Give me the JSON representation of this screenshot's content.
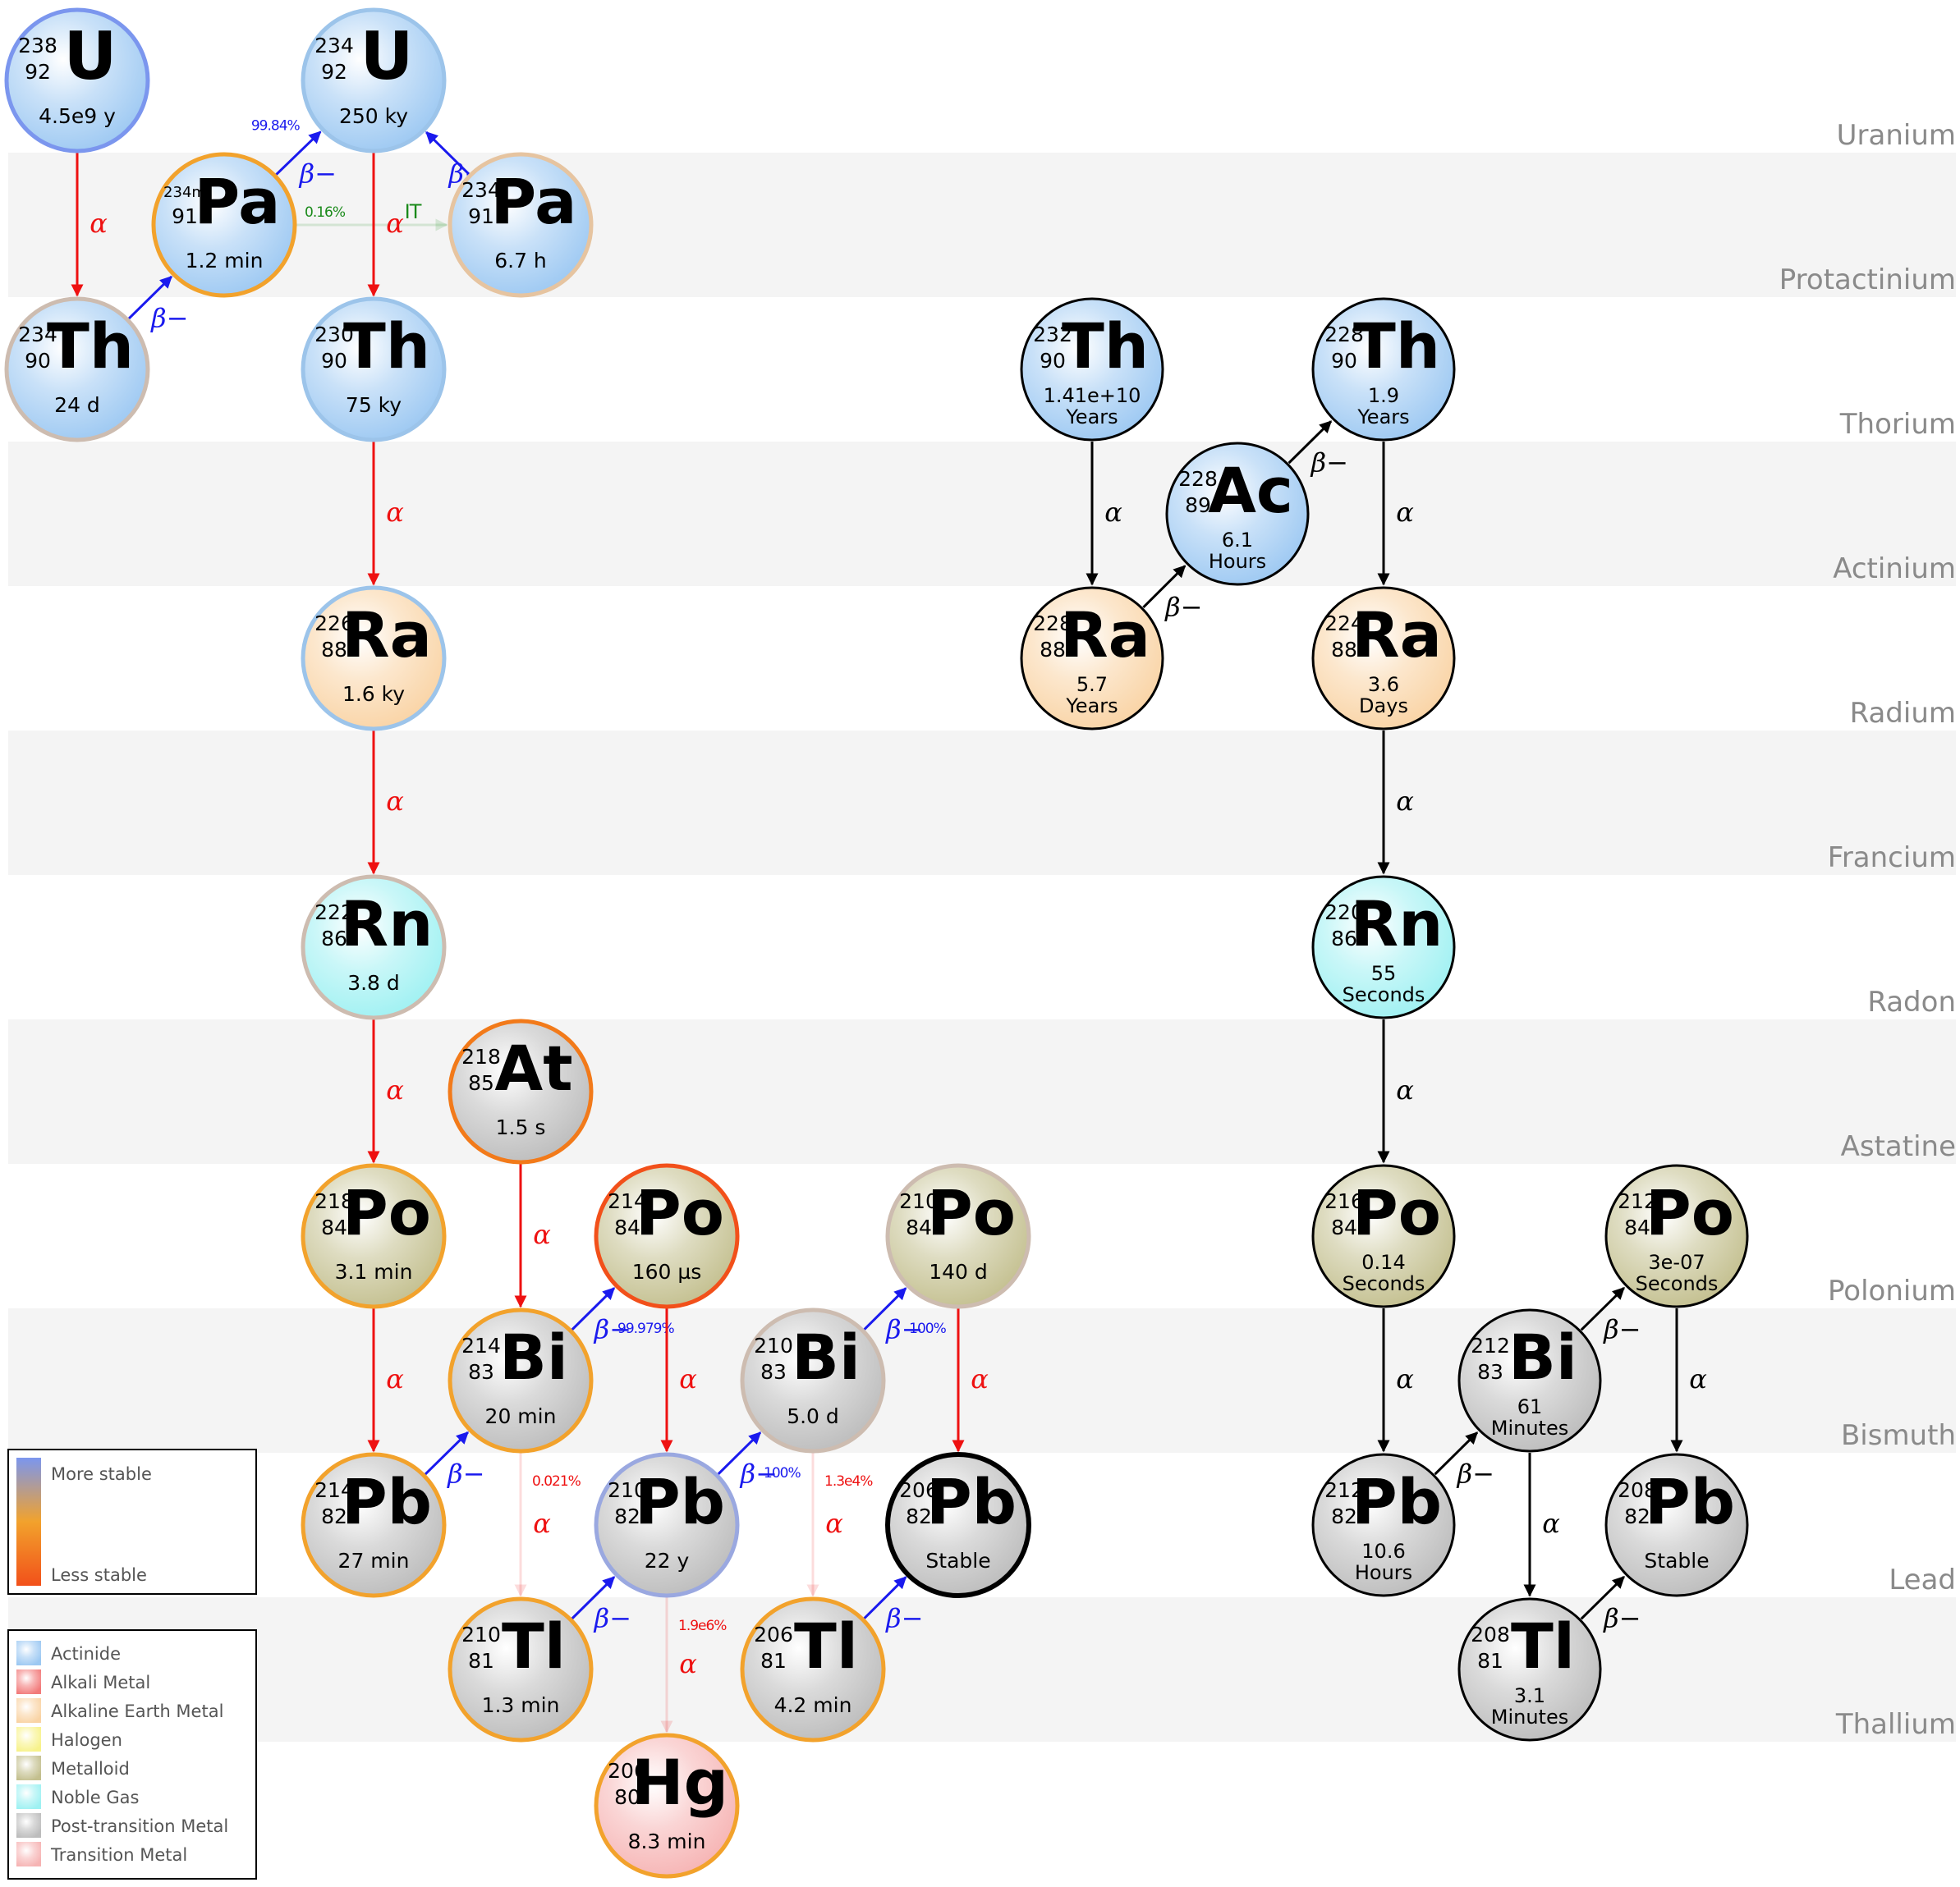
{
  "rows": [
    "Uranium",
    "Protactinium",
    "Thorium",
    "Actinium",
    "Radium",
    "Francium",
    "Radon",
    "Astatine",
    "Polonium",
    "Bismuth",
    "Lead",
    "Thallium"
  ],
  "colors": {
    "Actinide": "#9cc8f2",
    "Alkali Metal": "#f27a7a",
    "Alkaline Earth Metal": "#f9d3a4",
    "Halogen": "#f7f28a",
    "Metalloid": "#c3bf8e",
    "Noble Gas": "#9ef1f2",
    "Post-transition Metal": "#bcbcbc",
    "Transition Metal": "#f6b3b3",
    "red_arrow": "#ee1111",
    "blue_arrow": "#1a1aee",
    "green_text": "#1a8a1a"
  },
  "nuclides": [
    {
      "id": "u238",
      "mass": "238",
      "z": "92",
      "sym": "U",
      "hl": [
        "4.5e9 y"
      ],
      "cat": "Actinide",
      "ring": "#7b96ee"
    },
    {
      "id": "u234",
      "mass": "234",
      "z": "92",
      "sym": "U",
      "hl": [
        "250 ky"
      ],
      "cat": "Actinide",
      "ring": "#9cc4ea"
    },
    {
      "id": "pa234m",
      "mass": "234m",
      "z": "91",
      "sym": "Pa",
      "hl": [
        "1.2 min"
      ],
      "cat": "Actinide",
      "ring": "#f2a22c"
    },
    {
      "id": "pa234",
      "mass": "234",
      "z": "91",
      "sym": "Pa",
      "hl": [
        "6.7 h"
      ],
      "cat": "Actinide",
      "ring": "#e6c4a0"
    },
    {
      "id": "th234",
      "mass": "234",
      "z": "90",
      "sym": "Th",
      "hl": [
        "24 d"
      ],
      "cat": "Actinide",
      "ring": "#cdbcb0"
    },
    {
      "id": "th230",
      "mass": "230",
      "z": "90",
      "sym": "Th",
      "hl": [
        "75 ky"
      ],
      "cat": "Actinide",
      "ring": "#9cc4ea"
    },
    {
      "id": "ra226",
      "mass": "226",
      "z": "88",
      "sym": "Ra",
      "hl": [
        "1.6 ky"
      ],
      "cat": "Alkaline Earth Metal",
      "ring": "#9cc4ea"
    },
    {
      "id": "rn222",
      "mass": "222",
      "z": "86",
      "sym": "Rn",
      "hl": [
        "3.8 d"
      ],
      "cat": "Noble Gas",
      "ring": "#cdbcb0"
    },
    {
      "id": "at218",
      "mass": "218",
      "z": "85",
      "sym": "At",
      "hl": [
        "1.5 s"
      ],
      "cat": "Post-transition Metal",
      "ring": "#f27a1a"
    },
    {
      "id": "po218",
      "mass": "218",
      "z": "84",
      "sym": "Po",
      "hl": [
        "3.1 min"
      ],
      "cat": "Metalloid",
      "ring": "#f2a22c"
    },
    {
      "id": "po214",
      "mass": "214",
      "z": "84",
      "sym": "Po",
      "hl": [
        "160 µs"
      ],
      "cat": "Metalloid",
      "ring": "#f2501a"
    },
    {
      "id": "po210",
      "mass": "210",
      "z": "84",
      "sym": "Po",
      "hl": [
        "140 d"
      ],
      "cat": "Metalloid",
      "ring": "#cdbcb0"
    },
    {
      "id": "bi214",
      "mass": "214",
      "z": "83",
      "sym": "Bi",
      "hl": [
        "20 min"
      ],
      "cat": "Post-transition Metal",
      "ring": "#f2a22c"
    },
    {
      "id": "bi210",
      "mass": "210",
      "z": "83",
      "sym": "Bi",
      "hl": [
        "5.0 d"
      ],
      "cat": "Post-transition Metal",
      "ring": "#cdbcb0"
    },
    {
      "id": "pb214",
      "mass": "214",
      "z": "82",
      "sym": "Pb",
      "hl": [
        "27 min"
      ],
      "cat": "Post-transition Metal",
      "ring": "#f2a22c"
    },
    {
      "id": "pb210",
      "mass": "210",
      "z": "82",
      "sym": "Pb",
      "hl": [
        "22 y"
      ],
      "cat": "Post-transition Metal",
      "ring": "#9aa8e0"
    },
    {
      "id": "pb206",
      "mass": "206",
      "z": "82",
      "sym": "Pb",
      "hl": [
        "Stable"
      ],
      "cat": "Post-transition Metal",
      "ring": "#000000"
    },
    {
      "id": "tl210",
      "mass": "210",
      "z": "81",
      "sym": "Tl",
      "hl": [
        "1.3 min"
      ],
      "cat": "Post-transition Metal",
      "ring": "#f2a22c"
    },
    {
      "id": "tl206",
      "mass": "206",
      "z": "81",
      "sym": "Tl",
      "hl": [
        "4.2 min"
      ],
      "cat": "Post-transition Metal",
      "ring": "#f2a22c"
    },
    {
      "id": "hg206",
      "mass": "206",
      "z": "80",
      "sym": "Hg",
      "hl": [
        "8.3 min"
      ],
      "cat": "Transition Metal",
      "ring": "#f2a22c"
    },
    {
      "id": "th232",
      "mass": "232",
      "z": "90",
      "sym": "Th",
      "hl": [
        "1.41e+10",
        "Years"
      ],
      "cat": "Actinide",
      "ring": "#000000"
    },
    {
      "id": "th228",
      "mass": "228",
      "z": "90",
      "sym": "Th",
      "hl": [
        "1.9",
        "Years"
      ],
      "cat": "Actinide",
      "ring": "#000000"
    },
    {
      "id": "ac228",
      "mass": "228",
      "z": "89",
      "sym": "Ac",
      "hl": [
        "6.1",
        "Hours"
      ],
      "cat": "Actinide",
      "ring": "#000000"
    },
    {
      "id": "ra228",
      "mass": "228",
      "z": "88",
      "sym": "Ra",
      "hl": [
        "5.7",
        "Years"
      ],
      "cat": "Alkaline Earth Metal",
      "ring": "#000000"
    },
    {
      "id": "ra224",
      "mass": "224",
      "z": "88",
      "sym": "Ra",
      "hl": [
        "3.6",
        "Days"
      ],
      "cat": "Alkaline Earth Metal",
      "ring": "#000000"
    },
    {
      "id": "rn220",
      "mass": "220",
      "z": "86",
      "sym": "Rn",
      "hl": [
        "55",
        "Seconds"
      ],
      "cat": "Noble Gas",
      "ring": "#000000"
    },
    {
      "id": "po216",
      "mass": "216",
      "z": "84",
      "sym": "Po",
      "hl": [
        "0.14",
        "Seconds"
      ],
      "cat": "Metalloid",
      "ring": "#000000"
    },
    {
      "id": "po212",
      "mass": "212",
      "z": "84",
      "sym": "Po",
      "hl": [
        "3e-07",
        "Seconds"
      ],
      "cat": "Metalloid",
      "ring": "#000000"
    },
    {
      "id": "bi212",
      "mass": "212",
      "z": "83",
      "sym": "Bi",
      "hl": [
        "61",
        "Minutes"
      ],
      "cat": "Post-transition Metal",
      "ring": "#000000"
    },
    {
      "id": "pb212",
      "mass": "212",
      "z": "82",
      "sym": "Pb",
      "hl": [
        "10.6",
        "Hours"
      ],
      "cat": "Post-transition Metal",
      "ring": "#000000"
    },
    {
      "id": "pb208",
      "mass": "208",
      "z": "82",
      "sym": "Pb",
      "hl": [
        "Stable"
      ],
      "cat": "Post-transition Metal",
      "ring": "#000000"
    },
    {
      "id": "tl208",
      "mass": "208",
      "z": "81",
      "sym": "Tl",
      "hl": [
        "3.1",
        "Minutes"
      ],
      "cat": "Post-transition Metal",
      "ring": "#000000"
    }
  ],
  "decays": [
    {
      "from": "u238",
      "to": "th234",
      "mode": "α",
      "color": "#ee1111"
    },
    {
      "from": "th234",
      "to": "pa234m",
      "mode": "β−",
      "color": "#1a1aee"
    },
    {
      "from": "pa234m",
      "to": "u234",
      "mode": "β−",
      "color": "#1a1aee",
      "pct": "99.84%"
    },
    {
      "from": "pa234m",
      "to": "pa234",
      "mode": "IT",
      "color": "#1a8a1a",
      "pct": "0.16%",
      "faint": true
    },
    {
      "from": "pa234",
      "to": "u234",
      "mode": "β−",
      "color": "#1a1aee"
    },
    {
      "from": "u234",
      "to": "th230",
      "mode": "α",
      "color": "#ee1111"
    },
    {
      "from": "th230",
      "to": "ra226",
      "mode": "α",
      "color": "#ee1111"
    },
    {
      "from": "ra226",
      "to": "rn222",
      "mode": "α",
      "color": "#ee1111"
    },
    {
      "from": "rn222",
      "to": "po218",
      "mode": "α",
      "color": "#ee1111"
    },
    {
      "from": "po218",
      "to": "pb214",
      "mode": "α",
      "color": "#ee1111"
    },
    {
      "from": "pb214",
      "to": "bi214",
      "mode": "β−",
      "color": "#1a1aee"
    },
    {
      "from": "at218",
      "to": "bi214",
      "mode": "α",
      "color": "#ee1111"
    },
    {
      "from": "bi214",
      "to": "po214",
      "mode": "β−",
      "color": "#1a1aee",
      "pct": "99.979%"
    },
    {
      "from": "bi214",
      "to": "tl210",
      "mode": "α",
      "color": "#ee1111",
      "pct": "0.021%",
      "faint": true
    },
    {
      "from": "po214",
      "to": "pb210",
      "mode": "α",
      "color": "#ee1111"
    },
    {
      "from": "tl210",
      "to": "pb210",
      "mode": "β−",
      "color": "#1a1aee"
    },
    {
      "from": "pb210",
      "to": "bi210",
      "mode": "β−",
      "color": "#1a1aee",
      "pct": "100%"
    },
    {
      "from": "pb210",
      "to": "hg206",
      "mode": "α",
      "color": "#ee1111",
      "pct": "1.9e6%",
      "faint": true
    },
    {
      "from": "bi210",
      "to": "po210",
      "mode": "β−",
      "color": "#1a1aee",
      "pct": "100%"
    },
    {
      "from": "bi210",
      "to": "tl206",
      "mode": "α",
      "color": "#ee1111",
      "pct": "1.3e4%",
      "faint": true
    },
    {
      "from": "po210",
      "to": "pb206",
      "mode": "α",
      "color": "#ee1111"
    },
    {
      "from": "tl206",
      "to": "pb206",
      "mode": "β−",
      "color": "#1a1aee"
    },
    {
      "from": "th232",
      "to": "ra228",
      "mode": "α",
      "color": "#000000"
    },
    {
      "from": "ra228",
      "to": "ac228",
      "mode": "β−",
      "color": "#000000"
    },
    {
      "from": "ac228",
      "to": "th228",
      "mode": "β−",
      "color": "#000000"
    },
    {
      "from": "th228",
      "to": "ra224",
      "mode": "α",
      "color": "#000000"
    },
    {
      "from": "ra224",
      "to": "rn220",
      "mode": "α",
      "color": "#000000"
    },
    {
      "from": "rn220",
      "to": "po216",
      "mode": "α",
      "color": "#000000"
    },
    {
      "from": "po216",
      "to": "pb212",
      "mode": "α",
      "color": "#000000"
    },
    {
      "from": "pb212",
      "to": "bi212",
      "mode": "β−",
      "color": "#000000"
    },
    {
      "from": "bi212",
      "to": "po212",
      "mode": "β−",
      "color": "#000000"
    },
    {
      "from": "bi212",
      "to": "tl208",
      "mode": "α",
      "color": "#000000"
    },
    {
      "from": "po212",
      "to": "pb208",
      "mode": "α",
      "color": "#000000"
    },
    {
      "from": "tl208",
      "to": "pb208",
      "mode": "β−",
      "color": "#000000"
    }
  ],
  "legend_stability": {
    "top": "More stable",
    "bottom": "Less stable"
  },
  "legend_categories": [
    "Actinide",
    "Alkali Metal",
    "Alkaline Earth Metal",
    "Halogen",
    "Metalloid",
    "Noble Gas",
    "Post-transition Metal",
    "Transition Metal"
  ]
}
